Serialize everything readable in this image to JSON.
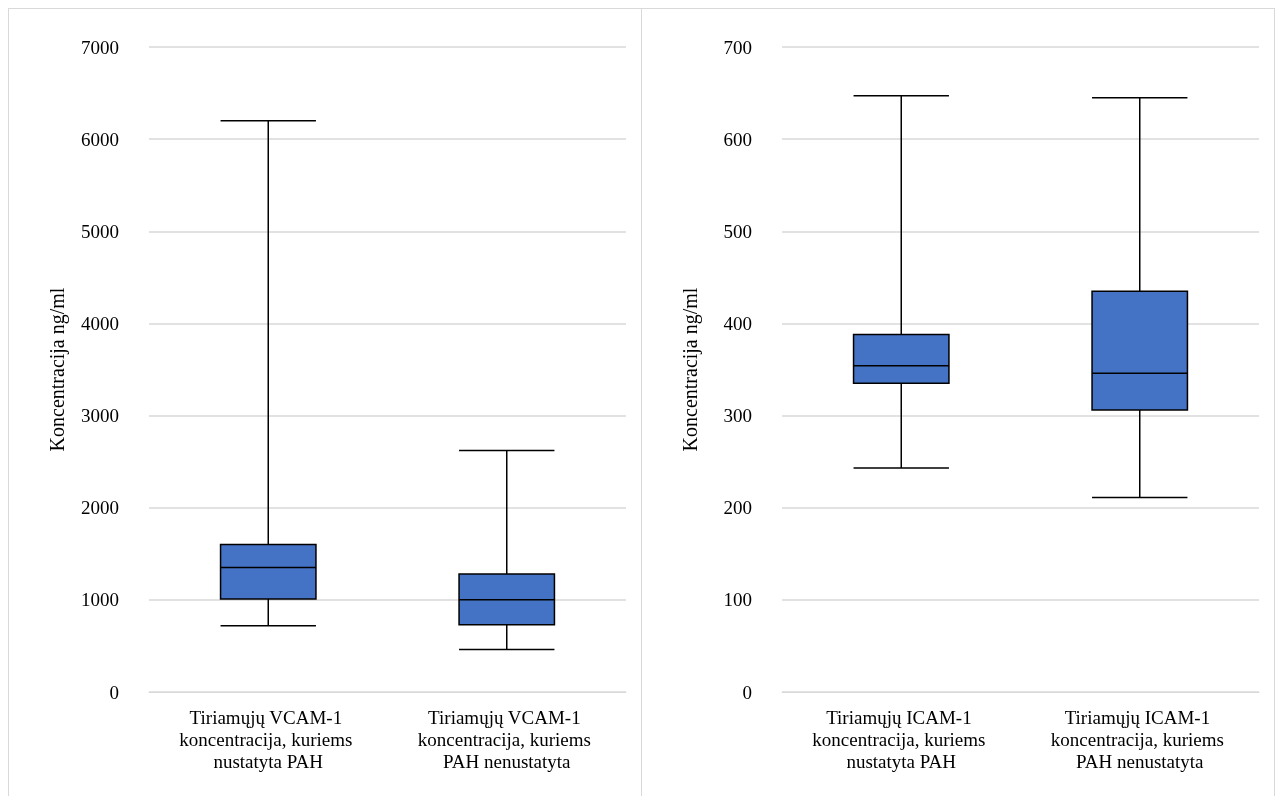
{
  "chart_data": [
    {
      "type": "box",
      "ylabel": "Koncentracija ng/ml",
      "categories": [
        "Tiriamųjų VCAM-1 koncentracija, kuriems nustatyta PAH",
        "Tiriamųjų VCAM-1 koncentracija, kuriems PAH nenustatyta"
      ],
      "color": "#4472c4",
      "boxes": [
        {
          "low": 720,
          "q1": 1010,
          "median": 1350,
          "q3": 1600,
          "high": 6200
        },
        {
          "low": 460,
          "q1": 730,
          "median": 1000,
          "q3": 1280,
          "high": 2620
        }
      ],
      "ylim": [
        0,
        7000
      ],
      "yticks": [
        0,
        1000,
        2000,
        3000,
        4000,
        5000,
        6000,
        7000
      ],
      "grid": "y"
    },
    {
      "type": "box",
      "ylabel": "Koncentracija ng/ml",
      "categories": [
        "Tiriamųjų ICAM-1 koncentracija, kuriems nustatyta PAH",
        "Tiriamųjų ICAM-1 koncentracija, kuriems PAH nenustatyta"
      ],
      "color": "#4472c4",
      "boxes": [
        {
          "low": 243,
          "q1": 335,
          "median": 354,
          "q3": 388,
          "high": 647
        },
        {
          "low": 211,
          "q1": 306,
          "median": 346,
          "q3": 435,
          "high": 645
        }
      ],
      "ylim": [
        0,
        700
      ],
      "yticks": [
        0,
        100,
        200,
        300,
        400,
        500,
        600,
        700
      ],
      "grid": "y"
    }
  ]
}
